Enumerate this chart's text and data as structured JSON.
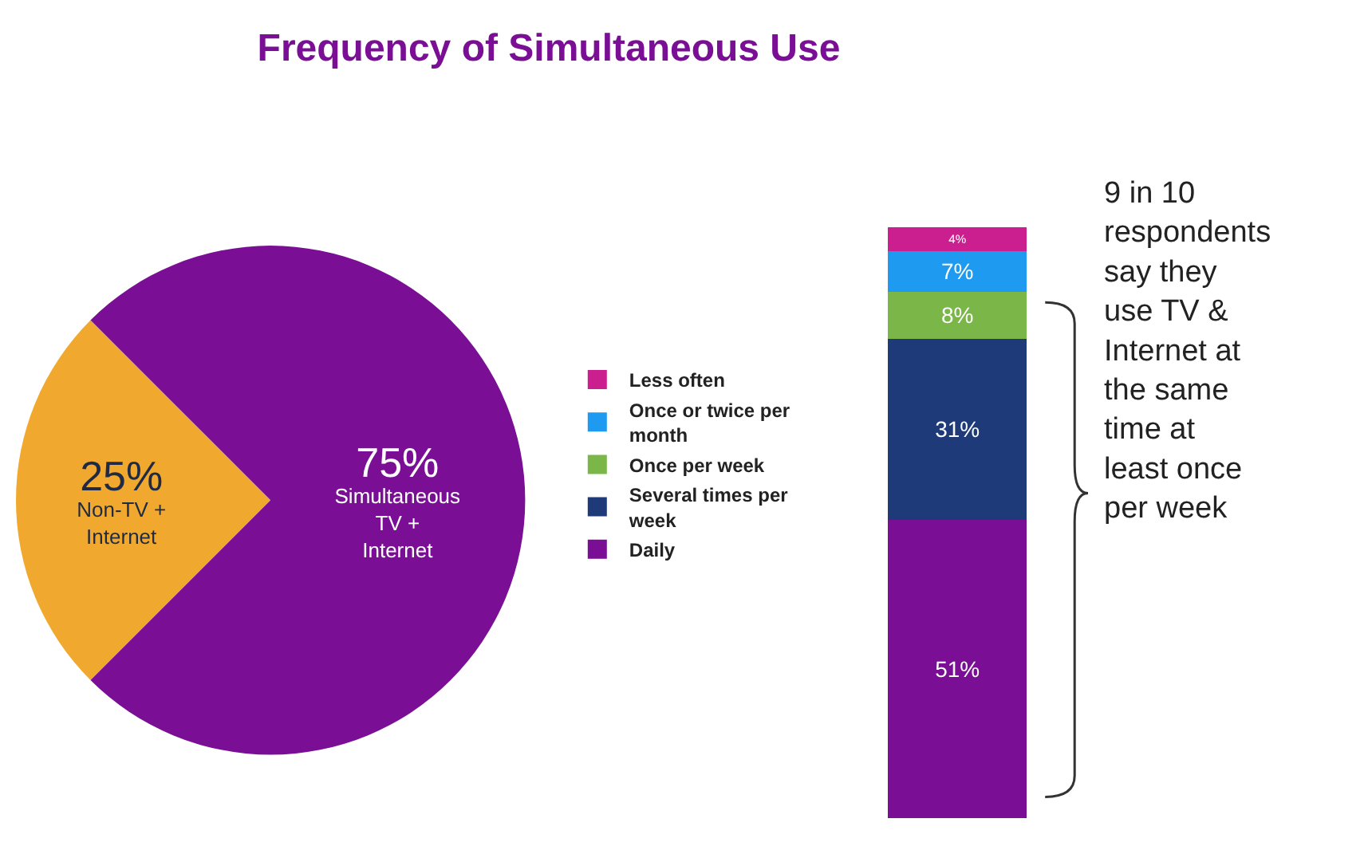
{
  "chart_data": [
    {
      "type": "pie",
      "title": "Frequency of Simultaneous Use",
      "categories": [
        "Non-TV + Internet",
        "Simultaneous TV + Internet"
      ],
      "values": [
        25,
        75
      ],
      "colors": [
        "#f0a92e",
        "#7a0f96"
      ],
      "value_labels": [
        "25%",
        "75%"
      ],
      "legend": false
    },
    {
      "type": "bar",
      "stacked": true,
      "categories": [
        null
      ],
      "tick_labels": false,
      "legend": "left",
      "series": [
        {
          "name": "Daily",
          "color": "#7a0f96",
          "values": [
            51
          ],
          "value_labels": [
            "51%"
          ]
        },
        {
          "name": "Several times per week",
          "color": "#1f3a78",
          "values": [
            31
          ],
          "value_labels": [
            "31%"
          ]
        },
        {
          "name": "Once per week",
          "color": "#7ab648",
          "values": [
            8
          ],
          "value_labels": [
            "8%"
          ]
        },
        {
          "name": "Once or twice per month",
          "color": "#1e9bf0",
          "values": [
            7
          ],
          "value_labels": [
            "7%"
          ]
        },
        {
          "name": "Less often",
          "color": "#cc1f8f",
          "values": [
            4
          ],
          "value_labels": [
            "4%"
          ]
        }
      ],
      "annotations": [
        "9 in 10 respondents say they use TV & Internet at the same time at least once per week"
      ]
    }
  ]
}
